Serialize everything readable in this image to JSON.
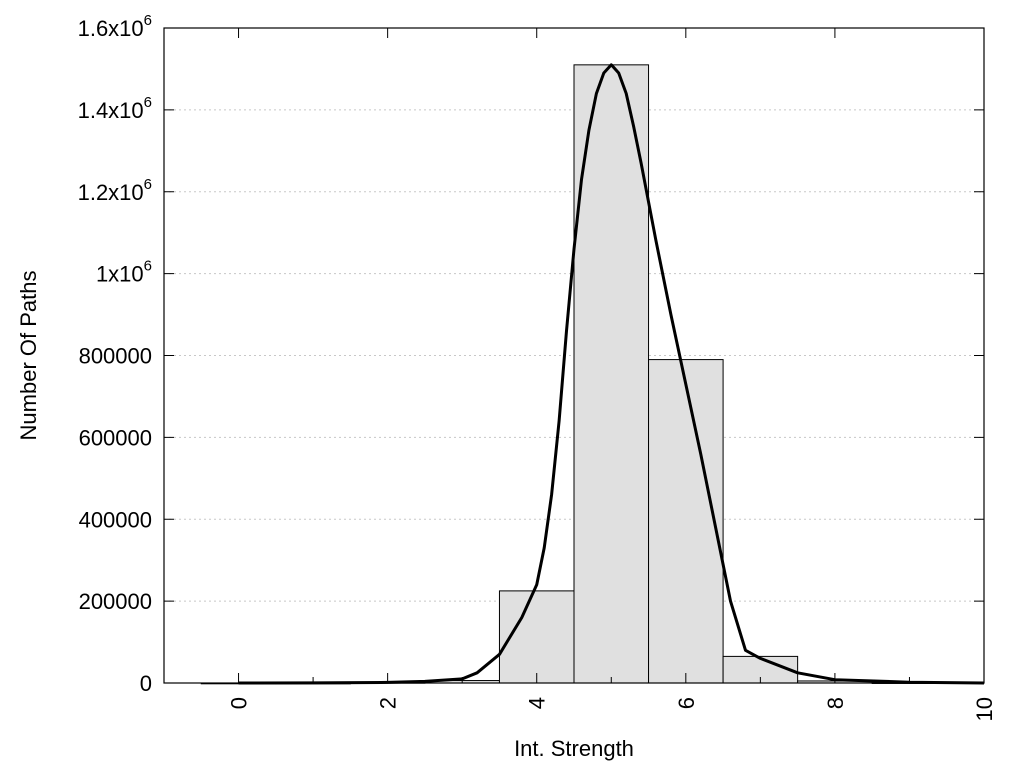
{
  "chart_data": {
    "type": "bar",
    "subtype": "histogram-with-fit-curve",
    "xlabel": "Int. Strength",
    "ylabel": "Number Of Paths",
    "xlim": [
      -1,
      10
    ],
    "ylim": [
      0,
      1600000
    ],
    "grid": "horizontal-dotted",
    "x_ticks": [
      {
        "value": 0,
        "label": "0"
      },
      {
        "value": 2,
        "label": "2"
      },
      {
        "value": 4,
        "label": "4"
      },
      {
        "value": 6,
        "label": "6"
      },
      {
        "value": 8,
        "label": "8"
      },
      {
        "value": 10,
        "label": "10"
      }
    ],
    "y_ticks": [
      {
        "value": 0,
        "base": "0",
        "exp": ""
      },
      {
        "value": 200000,
        "base": "200000",
        "exp": ""
      },
      {
        "value": 400000,
        "base": "400000",
        "exp": ""
      },
      {
        "value": 600000,
        "base": "600000",
        "exp": ""
      },
      {
        "value": 800000,
        "base": "800000",
        "exp": ""
      },
      {
        "value": 1000000,
        "base": "1x10",
        "exp": "6"
      },
      {
        "value": 1200000,
        "base": "1.2x10",
        "exp": "6"
      },
      {
        "value": 1400000,
        "base": "1.4x10",
        "exp": "6"
      },
      {
        "value": 1600000,
        "base": "1.6x10",
        "exp": "6"
      }
    ],
    "bars": [
      {
        "x": 0,
        "value": 0
      },
      {
        "x": 1,
        "value": 0
      },
      {
        "x": 2,
        "value": 1500
      },
      {
        "x": 3,
        "value": 6000
      },
      {
        "x": 4,
        "value": 225000
      },
      {
        "x": 5,
        "value": 1510000
      },
      {
        "x": 6,
        "value": 790000
      },
      {
        "x": 7,
        "value": 65000
      },
      {
        "x": 8,
        "value": 5000
      },
      {
        "x": 9,
        "value": 800
      }
    ],
    "bar_width": 1,
    "curve": [
      [
        0,
        0
      ],
      [
        1,
        200
      ],
      [
        2,
        1500
      ],
      [
        2.5,
        4000
      ],
      [
        3.0,
        10000
      ],
      [
        3.2,
        25000
      ],
      [
        3.5,
        70000
      ],
      [
        3.8,
        160000
      ],
      [
        4.0,
        240000
      ],
      [
        4.1,
        330000
      ],
      [
        4.2,
        460000
      ],
      [
        4.3,
        640000
      ],
      [
        4.4,
        860000
      ],
      [
        4.5,
        1060000
      ],
      [
        4.6,
        1230000
      ],
      [
        4.7,
        1350000
      ],
      [
        4.8,
        1440000
      ],
      [
        4.9,
        1490000
      ],
      [
        5.0,
        1510000
      ],
      [
        5.1,
        1490000
      ],
      [
        5.2,
        1440000
      ],
      [
        5.3,
        1360000
      ],
      [
        5.4,
        1270000
      ],
      [
        5.6,
        1080000
      ],
      [
        5.8,
        900000
      ],
      [
        6.0,
        730000
      ],
      [
        6.2,
        560000
      ],
      [
        6.4,
        380000
      ],
      [
        6.6,
        200000
      ],
      [
        6.8,
        80000
      ],
      [
        7.0,
        60000
      ],
      [
        7.5,
        25000
      ],
      [
        8.0,
        8000
      ],
      [
        9.0,
        2000
      ],
      [
        10.0,
        0
      ]
    ],
    "colors": {
      "bar_fill": "#e0e0e0",
      "bar_stroke": "#000000",
      "curve": "#000000",
      "grid": "#c8c8c8"
    }
  }
}
